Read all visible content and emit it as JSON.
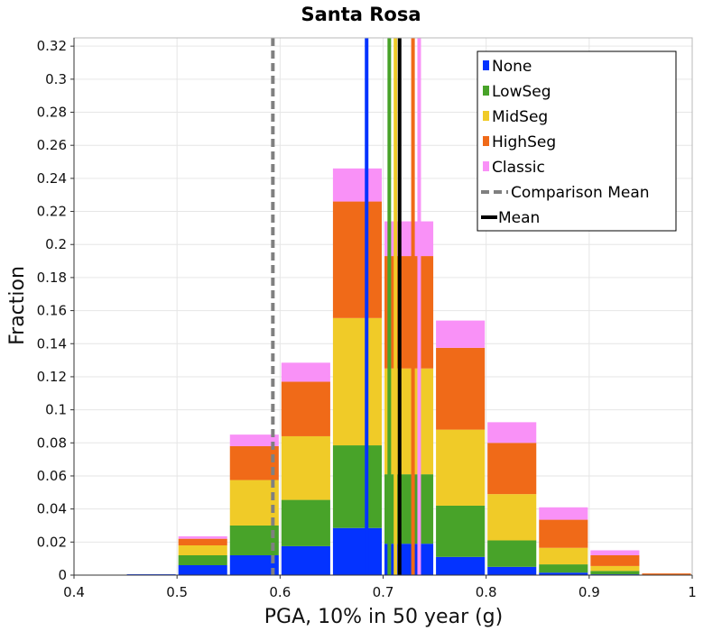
{
  "chart_data": {
    "type": "bar",
    "stacked": true,
    "title": "Santa Rosa",
    "xlabel": "PGA, 10% in 50 year (g)",
    "ylabel": "Fraction",
    "xlim": [
      0.4,
      1.0
    ],
    "ylim": [
      0,
      0.325
    ],
    "grid": true,
    "legend_position": "top-right",
    "x_ticks": [
      "0.4",
      "0.5",
      "0.6",
      "0.7",
      "0.8",
      "0.9",
      "1"
    ],
    "y_ticks": [
      "0",
      "0.02",
      "0.04",
      "0.06",
      "0.08",
      "0.1",
      "0.12",
      "0.14",
      "0.16",
      "0.18",
      "0.2",
      "0.22",
      "0.24",
      "0.26",
      "0.28",
      "0.3",
      "0.32"
    ],
    "bin_width": 0.05,
    "bin_centers": [
      0.425,
      0.475,
      0.525,
      0.575,
      0.625,
      0.675,
      0.725,
      0.775,
      0.825,
      0.875,
      0.925,
      0.975
    ],
    "series": [
      {
        "name": "None",
        "color": "#0433ff",
        "values": [
          0,
          0.0005,
          0.006,
          0.012,
          0.0175,
          0.0285,
          0.019,
          0.011,
          0.005,
          0.0015,
          0.0005,
          0
        ]
      },
      {
        "name": "LowSeg",
        "color": "#48a329",
        "values": [
          0,
          0,
          0.006,
          0.018,
          0.028,
          0.05,
          0.042,
          0.031,
          0.016,
          0.005,
          0.002,
          0
        ]
      },
      {
        "name": "MidSeg",
        "color": "#f0cb28",
        "values": [
          0,
          0,
          0.006,
          0.0275,
          0.0385,
          0.077,
          0.064,
          0.046,
          0.028,
          0.01,
          0.003,
          0
        ]
      },
      {
        "name": "HighSeg",
        "color": "#f06a18",
        "values": [
          0,
          0,
          0.004,
          0.0205,
          0.033,
          0.0705,
          0.068,
          0.0495,
          0.031,
          0.017,
          0.0065,
          0.001
        ]
      },
      {
        "name": "Classic",
        "color": "#f991f7",
        "values": [
          0,
          0,
          0.0015,
          0.007,
          0.0115,
          0.02,
          0.021,
          0.0165,
          0.0125,
          0.0075,
          0.003,
          0
        ]
      }
    ],
    "vertical_lines": [
      {
        "name": "None",
        "x": 0.684,
        "color": "#0433ff",
        "style": "solid"
      },
      {
        "name": "LowSeg",
        "x": 0.706,
        "color": "#48a329",
        "style": "solid"
      },
      {
        "name": "MidSeg",
        "x": 0.712,
        "color": "#f0cb28",
        "style": "solid"
      },
      {
        "name": "HighSeg",
        "x": 0.729,
        "color": "#f06a18",
        "style": "solid"
      },
      {
        "name": "Classic",
        "x": 0.735,
        "color": "#f991f7",
        "style": "solid"
      },
      {
        "name": "Comparison Mean",
        "x": 0.593,
        "color": "#808080",
        "style": "dashed"
      },
      {
        "name": "Mean",
        "x": 0.716,
        "color": "#000000",
        "style": "solid"
      }
    ],
    "legend": [
      {
        "label": "None",
        "color": "#0433ff",
        "kind": "box"
      },
      {
        "label": "LowSeg",
        "color": "#48a329",
        "kind": "box"
      },
      {
        "label": "MidSeg",
        "color": "#f0cb28",
        "kind": "box"
      },
      {
        "label": "HighSeg",
        "color": "#f06a18",
        "kind": "box"
      },
      {
        "label": "Classic",
        "color": "#f991f7",
        "kind": "box"
      },
      {
        "label": "Comparison Mean",
        "color": "#808080",
        "kind": "dashed"
      },
      {
        "label": "Mean",
        "color": "#000000",
        "kind": "line"
      }
    ]
  }
}
